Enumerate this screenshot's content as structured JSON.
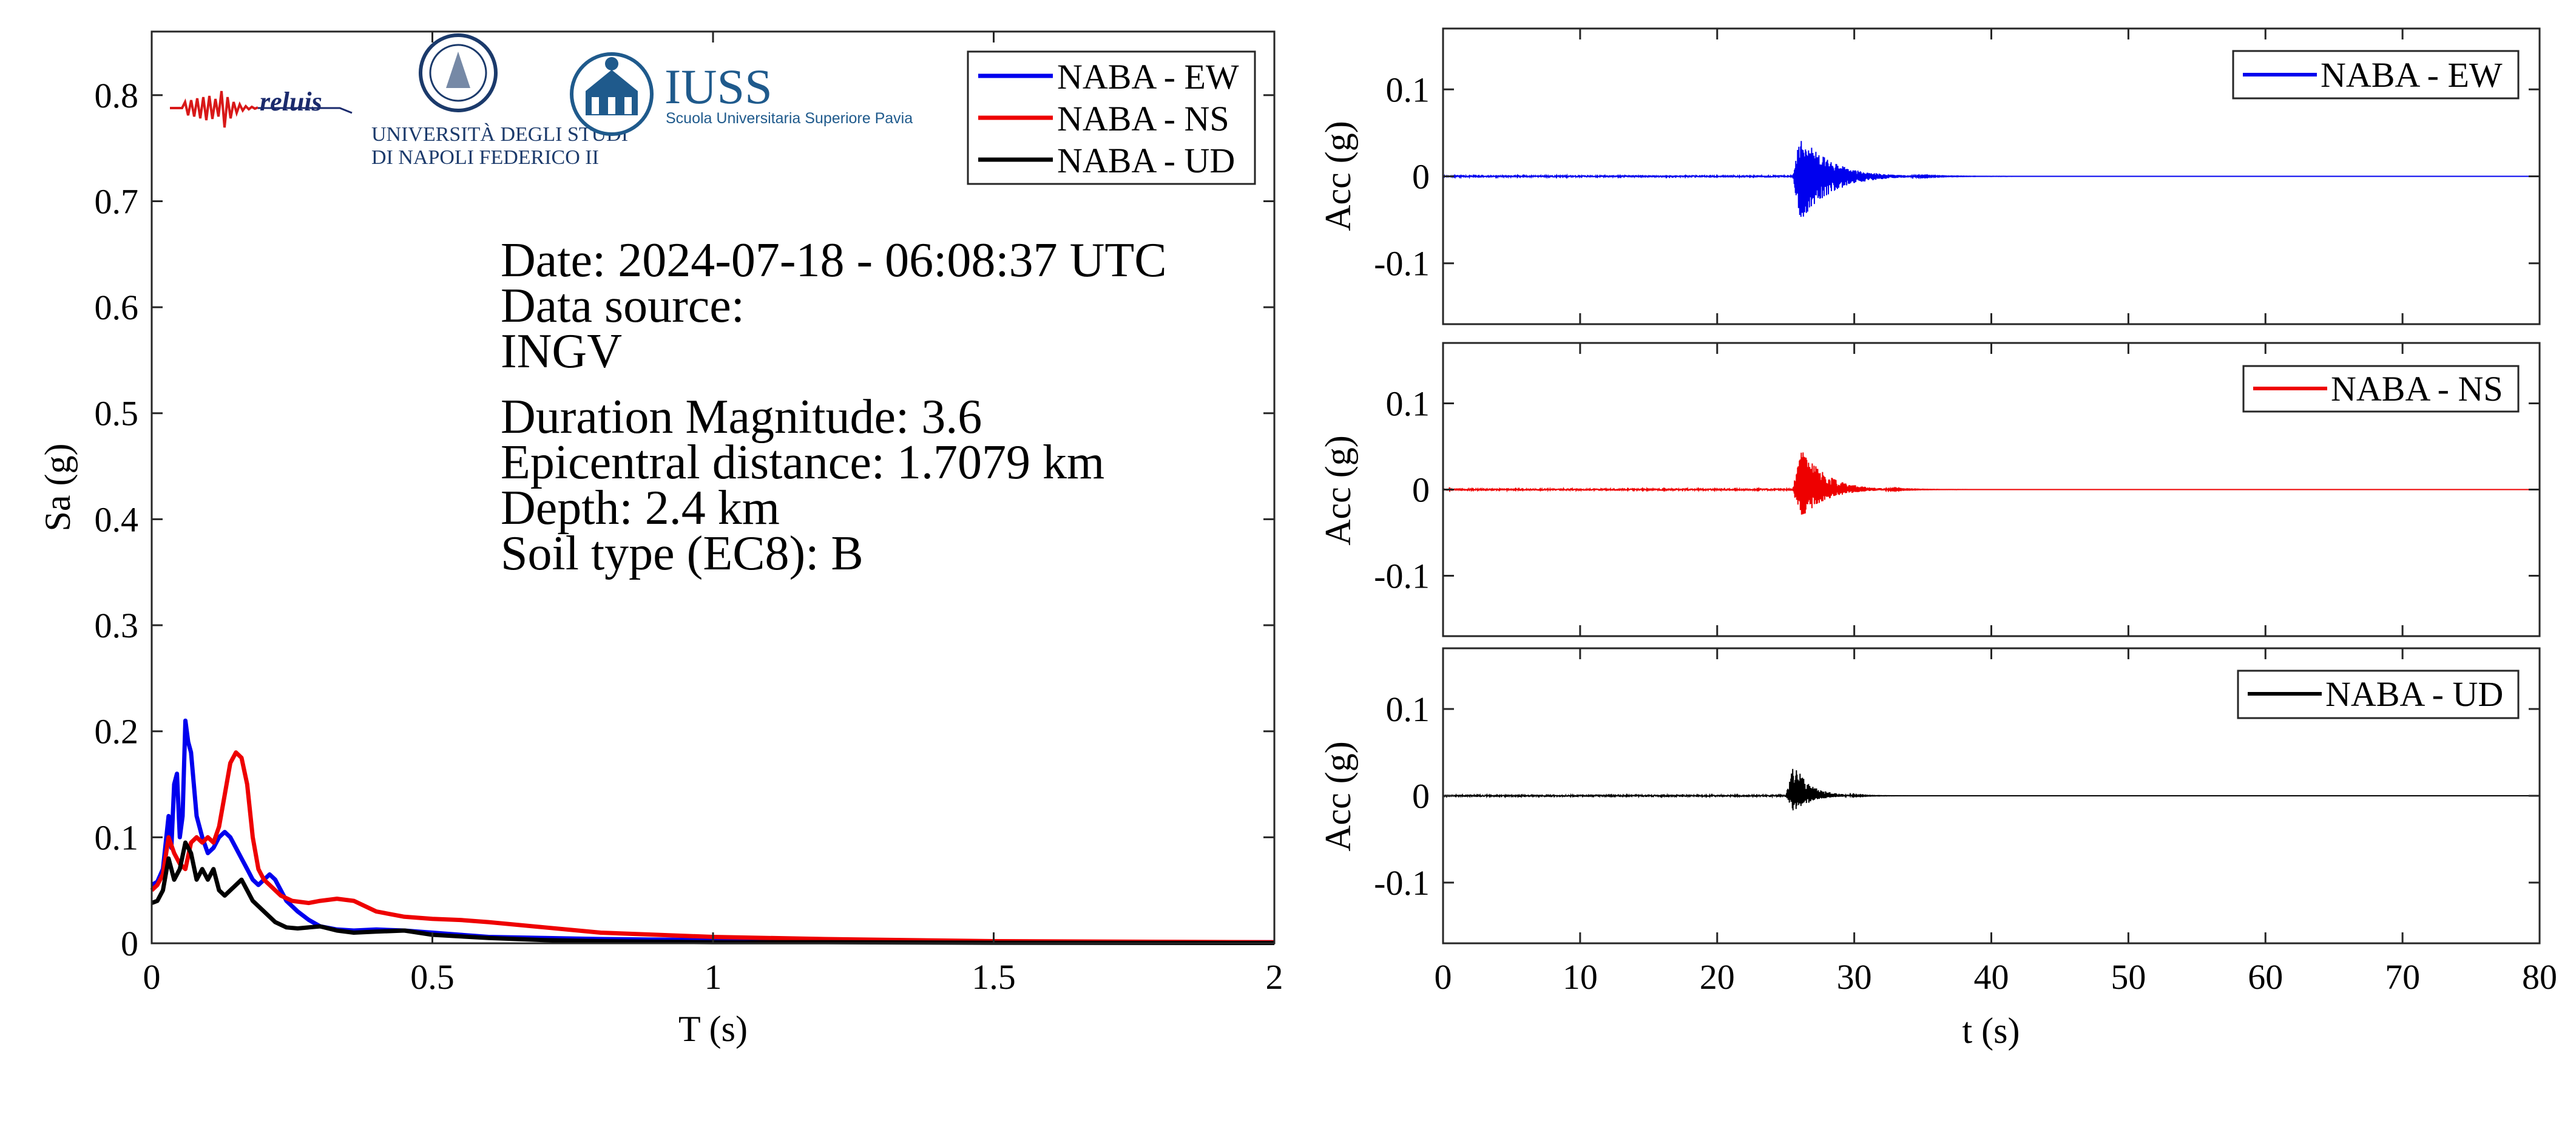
{
  "logos": {
    "reluis": "reluis",
    "unina_line1": "UNIVERSITÀ DEGLI STUDI",
    "unina_line2": "DI NAPOLI FEDERICO II",
    "iuss_title": "IUSS",
    "iuss_subtitle": "Scuola Universitaria Superiore Pavia"
  },
  "info": {
    "date": "Date: 2024-07-18 - 06:08:37 UTC",
    "source_label": "Data source:",
    "source": "INGV",
    "magnitude": "Duration Magnitude: 3.6",
    "distance": "Epicentral distance: 1.7079 km",
    "depth": "Depth: 2.4 km",
    "soil": "Soil type (EC8): B"
  },
  "chart_data": [
    {
      "type": "line",
      "xlabel": "T (s)",
      "ylabel": "Sa (g)",
      "xlim": [
        0,
        2
      ],
      "ylim": [
        0,
        0.86
      ],
      "xticks": [
        0,
        0.5,
        1,
        1.5,
        2
      ],
      "xtick_labels": [
        "0",
        "0.5",
        "1",
        "1.5",
        "2"
      ],
      "yticks": [
        0,
        0.1,
        0.2,
        0.3,
        0.4,
        0.5,
        0.6,
        0.7,
        0.8
      ],
      "ytick_labels": [
        "0",
        "0.1",
        "0.2",
        "0.3",
        "0.4",
        "0.5",
        "0.6",
        "0.7",
        "0.8"
      ],
      "grid": false,
      "legend_position": "top-right",
      "series": [
        {
          "name": "NABA - EW",
          "color": "#0000ee",
          "x": [
            0,
            0.01,
            0.02,
            0.03,
            0.035,
            0.04,
            0.045,
            0.05,
            0.055,
            0.06,
            0.065,
            0.07,
            0.075,
            0.08,
            0.09,
            0.1,
            0.11,
            0.12,
            0.13,
            0.14,
            0.15,
            0.16,
            0.17,
            0.18,
            0.19,
            0.2,
            0.21,
            0.22,
            0.23,
            0.24,
            0.26,
            0.28,
            0.3,
            0.33,
            0.36,
            0.4,
            0.45,
            0.5,
            0.55,
            0.6,
            0.7,
            0.8,
            1.0,
            1.2,
            1.5,
            2.0
          ],
          "y": [
            0.055,
            0.058,
            0.07,
            0.12,
            0.09,
            0.15,
            0.16,
            0.1,
            0.12,
            0.21,
            0.19,
            0.18,
            0.15,
            0.12,
            0.1,
            0.085,
            0.09,
            0.1,
            0.105,
            0.1,
            0.09,
            0.08,
            0.07,
            0.06,
            0.055,
            0.06,
            0.065,
            0.06,
            0.05,
            0.04,
            0.03,
            0.022,
            0.016,
            0.013,
            0.012,
            0.013,
            0.012,
            0.01,
            0.008,
            0.006,
            0.005,
            0.004,
            0.003,
            0.002,
            0.0015,
            0.001
          ]
        },
        {
          "name": "NABA - NS",
          "color": "#ee0000",
          "x": [
            0,
            0.01,
            0.02,
            0.03,
            0.04,
            0.05,
            0.06,
            0.07,
            0.08,
            0.09,
            0.1,
            0.11,
            0.12,
            0.13,
            0.14,
            0.15,
            0.16,
            0.17,
            0.18,
            0.19,
            0.2,
            0.21,
            0.22,
            0.23,
            0.25,
            0.28,
            0.3,
            0.33,
            0.36,
            0.4,
            0.45,
            0.5,
            0.55,
            0.6,
            0.7,
            0.8,
            0.9,
            1.0,
            1.2,
            1.5,
            2.0
          ],
          "y": [
            0.05,
            0.055,
            0.065,
            0.1,
            0.085,
            0.075,
            0.07,
            0.095,
            0.1,
            0.095,
            0.1,
            0.095,
            0.11,
            0.14,
            0.17,
            0.18,
            0.175,
            0.15,
            0.1,
            0.07,
            0.06,
            0.055,
            0.05,
            0.045,
            0.04,
            0.038,
            0.04,
            0.042,
            0.04,
            0.03,
            0.025,
            0.023,
            0.022,
            0.02,
            0.015,
            0.01,
            0.008,
            0.006,
            0.004,
            0.002,
            0.001
          ]
        },
        {
          "name": "NABA - UD",
          "color": "#000000",
          "x": [
            0,
            0.01,
            0.02,
            0.03,
            0.04,
            0.05,
            0.06,
            0.07,
            0.08,
            0.09,
            0.1,
            0.11,
            0.12,
            0.13,
            0.14,
            0.15,
            0.16,
            0.17,
            0.18,
            0.2,
            0.22,
            0.24,
            0.26,
            0.3,
            0.33,
            0.36,
            0.4,
            0.45,
            0.5,
            0.6,
            0.7,
            0.8,
            1.0,
            1.2,
            1.5,
            2.0
          ],
          "y": [
            0.038,
            0.04,
            0.05,
            0.08,
            0.06,
            0.07,
            0.095,
            0.085,
            0.06,
            0.07,
            0.06,
            0.07,
            0.05,
            0.045,
            0.05,
            0.055,
            0.06,
            0.05,
            0.04,
            0.03,
            0.02,
            0.015,
            0.014,
            0.016,
            0.012,
            0.01,
            0.011,
            0.012,
            0.008,
            0.005,
            0.003,
            0.002,
            0.001,
            0.001,
            0.0005,
            0.0003
          ]
        }
      ]
    },
    {
      "type": "line",
      "xlabel": "",
      "ylabel": "Acc (g)",
      "xlim": [
        0,
        80
      ],
      "ylim": [
        -0.17,
        0.17
      ],
      "yticks": [
        -0.1,
        0,
        0.1
      ],
      "ytick_labels": [
        "-0.1",
        "0",
        "0.1"
      ],
      "legend_position": "top-right",
      "series": [
        {
          "name": "NABA - EW",
          "color": "#0000ee",
          "onset_time": 25.5,
          "peak_positive": 0.05,
          "peak_negative": -0.055,
          "decay_end": 36
        }
      ]
    },
    {
      "type": "line",
      "xlabel": "",
      "ylabel": "Acc (g)",
      "xlim": [
        0,
        80
      ],
      "ylim": [
        -0.17,
        0.17
      ],
      "yticks": [
        -0.1,
        0,
        0.1
      ],
      "ytick_labels": [
        "-0.1",
        "0",
        "0.1"
      ],
      "legend_position": "top-right",
      "series": [
        {
          "name": "NABA - NS",
          "color": "#ee0000",
          "onset_time": 25.5,
          "peak_positive": 0.052,
          "peak_negative": -0.035,
          "decay_end": 34
        }
      ]
    },
    {
      "type": "line",
      "xlabel": "t (s)",
      "ylabel": "Acc (g)",
      "xlim": [
        0,
        80
      ],
      "ylim": [
        -0.17,
        0.17
      ],
      "xticks": [
        0,
        10,
        20,
        30,
        40,
        50,
        60,
        70,
        80
      ],
      "xtick_labels": [
        "0",
        "10",
        "20",
        "30",
        "40",
        "50",
        "60",
        "70",
        "80"
      ],
      "yticks": [
        -0.1,
        0,
        0.1
      ],
      "ytick_labels": [
        "-0.1",
        "0",
        "0.1"
      ],
      "legend_position": "top-right",
      "series": [
        {
          "name": "NABA - UD",
          "color": "#000000",
          "onset_time": 25,
          "peak_positive": 0.037,
          "peak_negative": -0.02,
          "decay_end": 31
        }
      ]
    }
  ]
}
